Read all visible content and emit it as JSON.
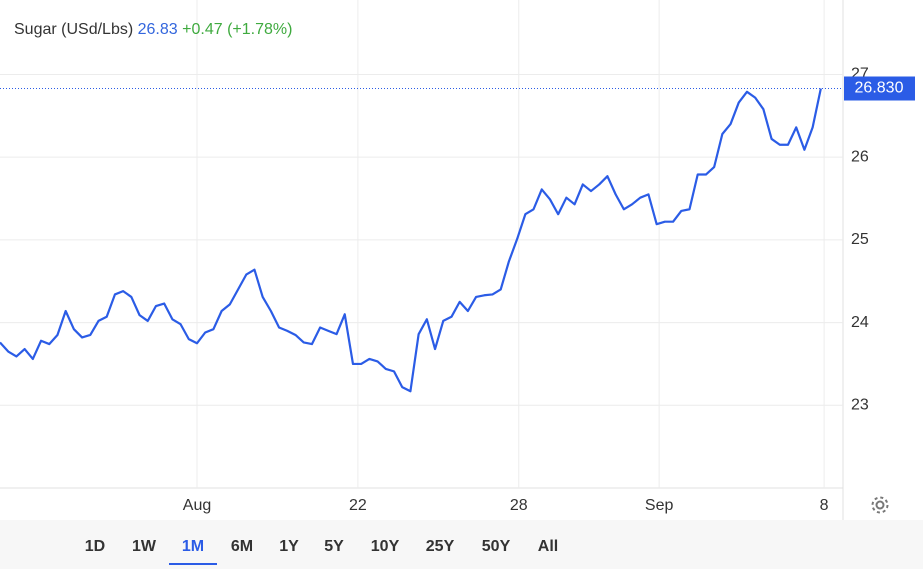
{
  "chart_data": {
    "type": "line",
    "title": "Sugar (USd/Lbs)",
    "last": 26.83,
    "change": {
      "value": 0.47,
      "label": "+0.47"
    },
    "change_pct": {
      "value": 1.78,
      "label": "(+1.78%)"
    },
    "last_tag": {
      "value": 26.83,
      "label": "26.830"
    },
    "x": [
      0,
      1,
      2,
      3,
      4,
      5,
      6,
      7,
      8,
      9,
      10,
      11,
      12,
      13,
      14,
      15,
      16,
      17,
      18,
      19,
      20,
      21,
      22,
      23,
      24,
      25,
      26,
      27,
      28,
      29,
      30,
      31,
      32,
      33,
      34,
      35,
      36,
      37,
      38,
      39,
      40,
      41,
      42,
      43,
      44,
      45,
      46,
      47,
      48,
      49,
      50,
      51,
      52,
      53,
      54,
      55,
      56,
      57,
      58,
      59,
      60,
      61,
      62,
      63,
      64,
      65,
      66,
      67,
      68,
      69,
      70,
      71,
      72,
      73,
      74,
      75,
      76,
      77,
      78,
      79,
      80,
      81,
      82,
      83,
      84,
      85,
      86,
      87,
      88,
      89,
      90,
      91,
      92,
      93,
      94,
      95,
      96,
      97,
      98,
      99,
      100
    ],
    "series": [
      {
        "name": "Sugar",
        "color": "#2b5ce6",
        "values": [
          23.76,
          23.65,
          23.59,
          23.68,
          23.56,
          23.78,
          23.74,
          23.85,
          24.14,
          23.92,
          23.82,
          23.85,
          24.02,
          24.07,
          24.34,
          24.38,
          24.31,
          24.09,
          24.02,
          24.2,
          24.23,
          24.04,
          23.98,
          23.8,
          23.75,
          23.88,
          23.92,
          24.14,
          24.22,
          24.4,
          24.58,
          24.64,
          24.31,
          24.14,
          23.94,
          23.9,
          23.85,
          23.76,
          23.74,
          23.94,
          23.9,
          23.86,
          24.1,
          23.5,
          23.5,
          23.56,
          23.53,
          23.44,
          23.41,
          23.22,
          23.17,
          23.86,
          24.04,
          23.68,
          24.02,
          24.07,
          24.25,
          24.14,
          24.31,
          24.33,
          24.34,
          24.4,
          24.74,
          25.01,
          25.31,
          25.37,
          25.61,
          25.49,
          25.31,
          25.51,
          25.43,
          25.67,
          25.59,
          25.67,
          25.77,
          25.55,
          25.37,
          25.43,
          25.51,
          25.55,
          25.19,
          25.22,
          25.22,
          25.35,
          25.37,
          25.79,
          25.79,
          25.88,
          26.28,
          26.4,
          26.66,
          26.79,
          26.72,
          26.58,
          26.22,
          26.15,
          26.15,
          26.36,
          26.09,
          26.36,
          26.83
        ]
      }
    ],
    "xlim": [
      0,
      102.7
    ],
    "xticks": [
      {
        "value": 24.0,
        "label": "Aug"
      },
      {
        "value": 43.6,
        "label": "22"
      },
      {
        "value": 63.2,
        "label": "28"
      },
      {
        "value": 80.3,
        "label": "Sep"
      },
      {
        "value": 100.4,
        "label": "8"
      }
    ],
    "ylim": [
      22,
      27.9
    ],
    "yticks": [
      23,
      24,
      25,
      26,
      27
    ],
    "grid": true,
    "ranges": [
      "1D",
      "1W",
      "1M",
      "6M",
      "1Y",
      "5Y",
      "10Y",
      "25Y",
      "50Y",
      "All"
    ],
    "active_range": "1M"
  }
}
